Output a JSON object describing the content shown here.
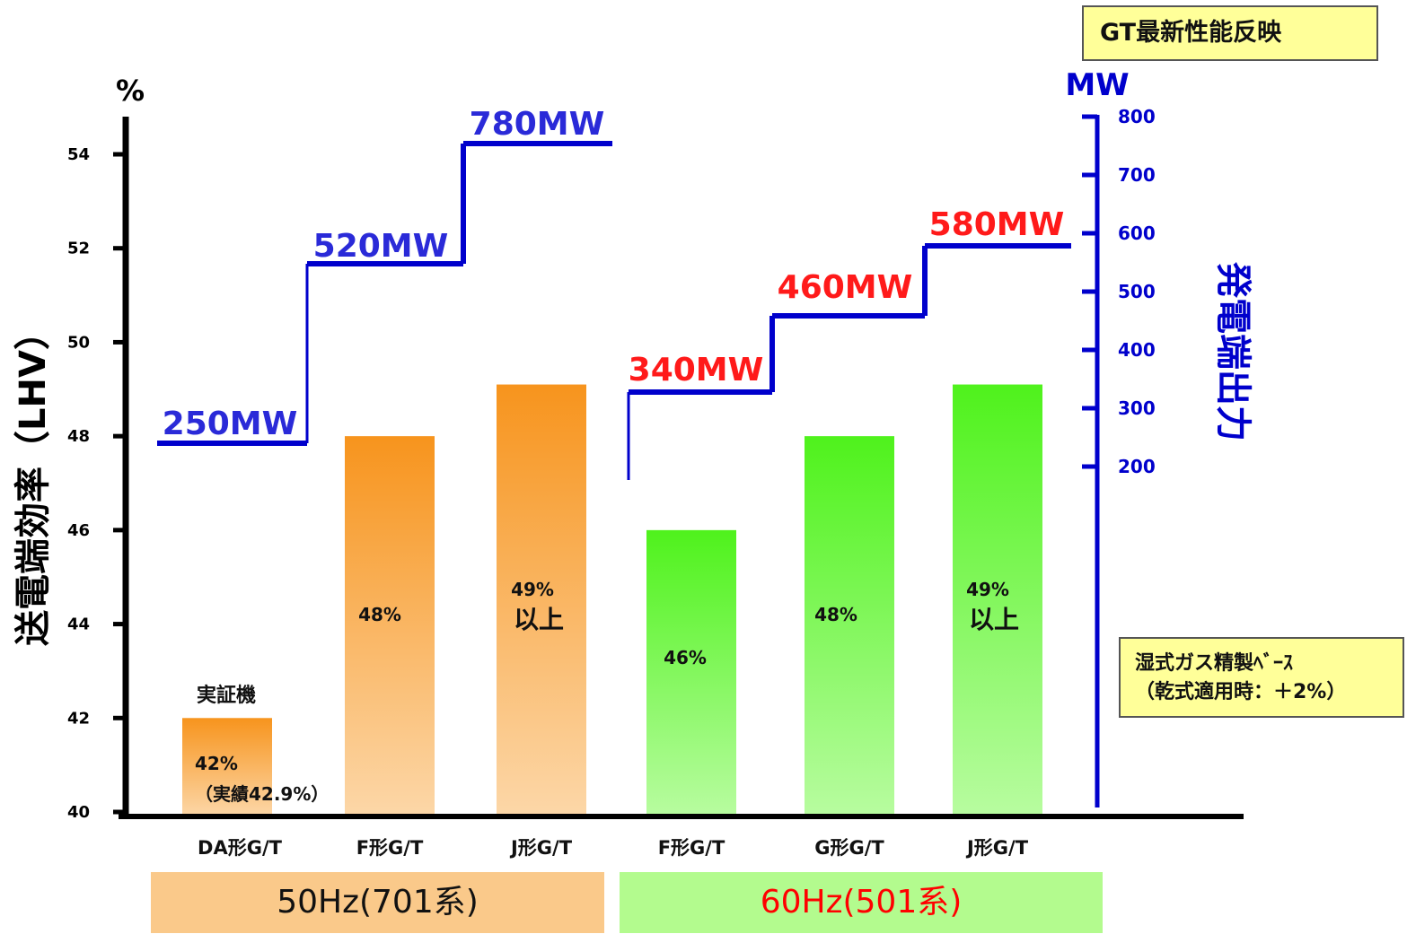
{
  "header_box": "GT最新性能反映",
  "side_note": {
    "line1": "湿式ガス精製ﾍﾞｰｽ",
    "line2": "（乾式適用時：＋2%）"
  },
  "groups": [
    {
      "label": "50Hz(701系)",
      "color": "#fac98a",
      "text_color": "#111111"
    },
    {
      "label": "60Hz(501系)",
      "color": "#b3fb8e",
      "text_color": "#ff0000"
    }
  ],
  "chart_data": {
    "type": "bar",
    "categories": [
      "DA形G/T",
      "F形G/T",
      "J形G/T",
      "F形G/T",
      "G形G/T",
      "J形G/T"
    ],
    "values": [
      42,
      48,
      49.1,
      46,
      48,
      49.1
    ],
    "bar_groups": [
      0,
      0,
      0,
      1,
      1,
      1
    ],
    "bar_labels": [
      [
        "42%",
        "（実績42.9%）"
      ],
      [
        "48%"
      ],
      [
        "49%",
        "以上"
      ],
      [
        "46%"
      ],
      [
        "48%"
      ],
      [
        "49%",
        "以上"
      ]
    ],
    "annotations": [
      {
        "bar": 0,
        "text": "実証機"
      }
    ],
    "bar_colors": [
      "#f7941d",
      "#f7941d",
      "#f7941d",
      "#4ff21c",
      "#4ff21c",
      "#4ff21c"
    ],
    "ylabel": "送電端効率（LHV）",
    "yunit": "%",
    "ylim": [
      40,
      54
    ],
    "yticks": [
      40,
      42,
      44,
      46,
      48,
      50,
      52,
      54
    ],
    "y2label": "発電端出力",
    "y2unit": "MW",
    "y2ticks": [
      200,
      300,
      400,
      500,
      600,
      700,
      800
    ],
    "y2ticks_range": [
      200,
      800
    ],
    "output_series": {
      "values": [
        250,
        520,
        780,
        340,
        460,
        580
      ],
      "labels": [
        "250MW",
        "520MW",
        "780MW",
        "340MW",
        "460MW",
        "580MW"
      ],
      "label_colors": [
        "#2a2ad8",
        "#2a2ad8",
        "#2a2ad8",
        "#ff1a1a",
        "#ff1a1a",
        "#ff1a1a"
      ],
      "line_color": "#0000cc"
    },
    "grid": false
  }
}
